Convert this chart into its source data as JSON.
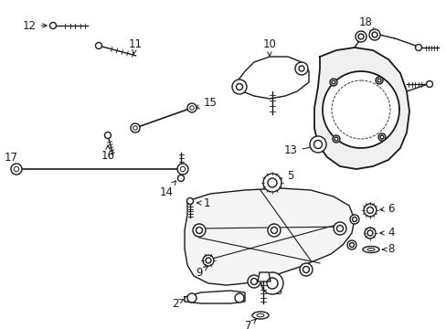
{
  "bg_color": "#ffffff",
  "line_color": "#1a1a1a",
  "lw": 1.0,
  "figsize": [
    4.89,
    3.6
  ],
  "dpi": 100
}
